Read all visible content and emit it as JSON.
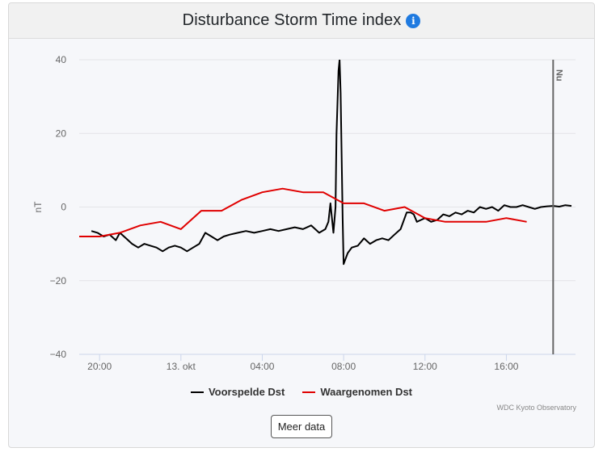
{
  "header": {
    "title": "Disturbance Storm Time index",
    "info_icon": "info-icon"
  },
  "chart_data": {
    "type": "line",
    "title": "Disturbance Storm Time index",
    "xlabel": "",
    "ylabel": "nT",
    "ylim": [
      -40,
      40
    ],
    "yticks": [
      40,
      20,
      0,
      -20,
      -40
    ],
    "x_unit": "hours after 00:00 on 12 Oct",
    "xlim": [
      19.0,
      43.4
    ],
    "xticks": [
      {
        "x": 20,
        "label": "20:00"
      },
      {
        "x": 24,
        "label": "13. okt"
      },
      {
        "x": 28,
        "label": "04:00"
      },
      {
        "x": 32,
        "label": "08:00"
      },
      {
        "x": 36,
        "label": "12:00"
      },
      {
        "x": 40,
        "label": "16:00"
      }
    ],
    "now_marker": {
      "x": 42.3,
      "label": "Nu"
    },
    "grid": true,
    "legend": "bottom",
    "series": [
      {
        "name": "Voorspelde Dst",
        "color": "#000000",
        "x": [
          19.6,
          19.9,
          20.2,
          20.5,
          20.8,
          21.0,
          21.3,
          21.6,
          21.9,
          22.2,
          22.5,
          22.8,
          23.1,
          23.4,
          23.7,
          24.0,
          24.3,
          24.6,
          24.9,
          25.2,
          25.5,
          25.8,
          26.1,
          26.4,
          26.8,
          27.2,
          27.6,
          28.0,
          28.4,
          28.8,
          29.2,
          29.6,
          30.0,
          30.4,
          30.8,
          31.1,
          31.25,
          31.35,
          31.5,
          31.6,
          31.65,
          31.75,
          31.8,
          31.85,
          31.95,
          32.0,
          32.1,
          32.2,
          32.4,
          32.7,
          33.0,
          33.3,
          33.6,
          33.9,
          34.2,
          34.5,
          34.8,
          35.1,
          35.3,
          35.45,
          35.6,
          35.8,
          36.0,
          36.3,
          36.6,
          36.9,
          37.2,
          37.5,
          37.8,
          38.1,
          38.4,
          38.7,
          39.0,
          39.3,
          39.6,
          39.9,
          40.2,
          40.5,
          40.8,
          41.1,
          41.4,
          41.7,
          42.0,
          42.3,
          42.6,
          42.9,
          43.2
        ],
        "values": [
          -6.5,
          -7,
          -8,
          -7.5,
          -9,
          -7,
          -8.5,
          -10,
          -11,
          -10,
          -10.5,
          -11,
          -12,
          -11,
          -10.5,
          -11,
          -12,
          -11,
          -10,
          -7,
          -8,
          -9,
          -8,
          -7.5,
          -7,
          -6.5,
          -7,
          -6.5,
          -6,
          -6.5,
          -6,
          -5.5,
          -6,
          -5,
          -7,
          -6,
          -4,
          1,
          -7,
          0,
          19.8,
          37,
          40,
          31,
          -3,
          -15.5,
          -14,
          -12.5,
          -11,
          -10.5,
          -8.5,
          -10,
          -9,
          -8.5,
          -9,
          -7.5,
          -6,
          -1.5,
          -1.5,
          -2,
          -4,
          -3.5,
          -3,
          -4,
          -3.5,
          -2,
          -2.5,
          -1.5,
          -2,
          -1,
          -1.5,
          0,
          -0.5,
          0,
          -1,
          0.5,
          0,
          0,
          0.5,
          0,
          -0.5,
          0,
          0.2,
          0.3,
          0.1,
          0.5,
          0.3
        ]
      },
      {
        "name": "Waargenomen Dst",
        "color": "#e00000",
        "x": [
          19.0,
          20.0,
          21.0,
          22.0,
          23.0,
          24.0,
          25.0,
          26.0,
          27.0,
          28.0,
          29.0,
          30.0,
          31.0,
          32.0,
          33.0,
          34.0,
          35.0,
          36.0,
          37.0,
          38.0,
          39.0,
          40.0,
          41.0
        ],
        "values": [
          -8,
          -8,
          -7,
          -5,
          -4,
          -6,
          -1,
          -1,
          2,
          4,
          5,
          4,
          4,
          1,
          1,
          -1,
          0,
          -3,
          -4,
          -4,
          -4,
          -3,
          -4
        ]
      }
    ]
  },
  "legend": {
    "items": [
      "Voorspelde Dst",
      "Waargenomen Dst"
    ]
  },
  "credits": "WDC Kyoto Observatory",
  "more_button": "Meer data",
  "y_axis_label": "nT"
}
